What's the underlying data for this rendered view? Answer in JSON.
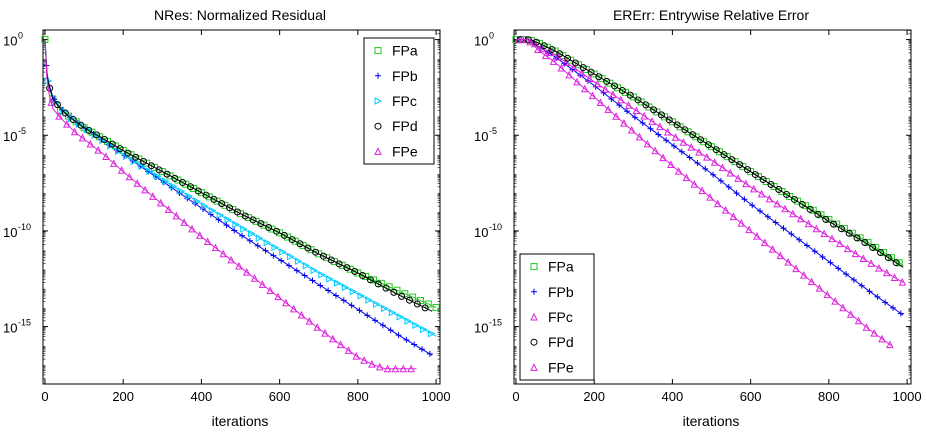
{
  "chart_data": [
    {
      "type": "line",
      "title": "NRes: Normalized Residual",
      "xlabel": "iterations",
      "ylabel": "",
      "xlim": [
        -5,
        1010
      ],
      "ylim_log10": [
        -18,
        0.5
      ],
      "y_scale": "log",
      "x_ticks": [
        "0",
        "200",
        "400",
        "600",
        "800",
        "1000"
      ],
      "y_ticks": [
        {
          "base": "10",
          "exp": "0"
        },
        {
          "base": "10",
          "exp": "-5"
        },
        {
          "base": "10",
          "exp": "-10"
        },
        {
          "base": "10",
          "exp": "-15"
        }
      ],
      "legend_position": "top-right",
      "grid": false,
      "series": [
        {
          "name": "FPa",
          "color": "#22cc22",
          "marker": "square",
          "x": [
            0,
            5,
            10,
            20,
            40,
            60,
            80,
            100,
            150,
            200,
            300,
            400,
            500,
            600,
            700,
            800,
            900,
            1000
          ],
          "log10_y": [
            0,
            -1.8,
            -2.4,
            -3.1,
            -3.7,
            -4.0,
            -4.3,
            -4.6,
            -5.2,
            -5.8,
            -6.9,
            -8.0,
            -9.1,
            -10.1,
            -11.2,
            -12.2,
            -13.1,
            -14.0
          ]
        },
        {
          "name": "FPb",
          "color": "#0000ee",
          "marker": "plus",
          "x": [
            0,
            5,
            10,
            20,
            40,
            60,
            80,
            100,
            150,
            200,
            300,
            400,
            500,
            600,
            700,
            800,
            900,
            990
          ],
          "log10_y": [
            0,
            -1.7,
            -2.3,
            -3.0,
            -3.6,
            -4.0,
            -4.3,
            -4.6,
            -5.3,
            -6.0,
            -7.4,
            -8.8,
            -10.2,
            -11.5,
            -12.8,
            -14.1,
            -15.4,
            -16.5
          ]
        },
        {
          "name": "FPc",
          "color": "#00ccff",
          "marker": "triangle-right",
          "x": [
            0,
            5,
            10,
            20,
            40,
            60,
            80,
            100,
            150,
            200,
            300,
            400,
            500,
            600,
            700,
            800,
            900,
            1000
          ],
          "log10_y": [
            0,
            -1.8,
            -2.4,
            -3.1,
            -3.6,
            -4.0,
            -4.3,
            -4.6,
            -5.3,
            -6.0,
            -7.3,
            -8.6,
            -9.8,
            -11.0,
            -12.2,
            -13.3,
            -14.4,
            -15.5
          ]
        },
        {
          "name": "FPd",
          "color": "#000000",
          "marker": "circle",
          "x": [
            0,
            5,
            10,
            20,
            40,
            60,
            80,
            100,
            150,
            200,
            300,
            400,
            500,
            600,
            700,
            800,
            900,
            990
          ],
          "log10_y": [
            0,
            -1.8,
            -2.4,
            -3.1,
            -3.6,
            -4.0,
            -4.3,
            -4.6,
            -5.2,
            -5.8,
            -6.9,
            -8.0,
            -9.1,
            -10.1,
            -11.2,
            -12.2,
            -13.3,
            -14.2
          ]
        },
        {
          "name": "FPe",
          "color": "#dd22dd",
          "marker": "triangle-up",
          "x": [
            0,
            5,
            10,
            20,
            40,
            60,
            80,
            100,
            150,
            200,
            300,
            400,
            500,
            600,
            700,
            800,
            840,
            870,
            900,
            950
          ],
          "log10_y": [
            0,
            -2.0,
            -2.8,
            -3.6,
            -4.1,
            -4.5,
            -4.9,
            -5.2,
            -6.0,
            -6.9,
            -8.6,
            -10.3,
            -11.9,
            -13.5,
            -15.1,
            -16.6,
            -17.0,
            -17.2,
            -17.2,
            -17.2
          ]
        }
      ]
    },
    {
      "type": "line",
      "title": "ERErr: Entrywise Relative Error",
      "xlabel": "iterations",
      "ylabel": "",
      "xlim": [
        -5,
        1010
      ],
      "ylim_log10": [
        -18,
        0.5
      ],
      "y_scale": "log",
      "x_ticks": [
        "0",
        "200",
        "400",
        "600",
        "800",
        "1000"
      ],
      "y_ticks": [
        {
          "base": "10",
          "exp": "0"
        },
        {
          "base": "10",
          "exp": "-5"
        },
        {
          "base": "10",
          "exp": "-10"
        },
        {
          "base": "10",
          "exp": "-15"
        }
      ],
      "legend_position": "bottom-left",
      "grid": false,
      "series": [
        {
          "name": "FPa",
          "color": "#22cc22",
          "marker": "square",
          "x": [
            0,
            30,
            40,
            60,
            100,
            200,
            300,
            400,
            500,
            600,
            700,
            800,
            900,
            990
          ],
          "log10_y": [
            0,
            0,
            -0.05,
            -0.2,
            -0.6,
            -1.8,
            -3.0,
            -4.3,
            -5.6,
            -6.9,
            -8.2,
            -9.4,
            -10.6,
            -11.8
          ]
        },
        {
          "name": "FPb",
          "color": "#0000ee",
          "marker": "plus",
          "x": [
            0,
            30,
            40,
            60,
            100,
            200,
            300,
            400,
            500,
            600,
            700,
            800,
            900,
            990
          ],
          "log10_y": [
            0,
            0,
            -0.1,
            -0.4,
            -0.9,
            -2.4,
            -4.0,
            -5.5,
            -7.0,
            -8.6,
            -10.1,
            -11.6,
            -13.1,
            -14.4
          ]
        },
        {
          "name": "FPc",
          "color": "#dd22dd",
          "marker": "triangle-up",
          "x": [
            0,
            30,
            40,
            60,
            100,
            200,
            300,
            400,
            500,
            600,
            700,
            800,
            900,
            990
          ],
          "log10_y": [
            0,
            0,
            -0.1,
            -0.4,
            -0.8,
            -2.2,
            -3.6,
            -5.0,
            -6.3,
            -7.7,
            -9.0,
            -10.3,
            -11.6,
            -12.7
          ]
        },
        {
          "name": "FPd",
          "color": "#000000",
          "marker": "circle",
          "x": [
            0,
            30,
            40,
            60,
            100,
            200,
            300,
            400,
            500,
            600,
            700,
            800,
            900,
            990
          ],
          "log10_y": [
            0,
            0,
            -0.05,
            -0.2,
            -0.6,
            -1.8,
            -3.0,
            -4.3,
            -5.6,
            -6.9,
            -8.2,
            -9.5,
            -10.7,
            -11.9
          ]
        },
        {
          "name": "FPe",
          "color": "#dd22dd",
          "marker": "triangle-up",
          "x": [
            0,
            30,
            40,
            60,
            100,
            200,
            300,
            400,
            500,
            600,
            700,
            800,
            900,
            960
          ],
          "log10_y": [
            0,
            0,
            -0.2,
            -0.6,
            -1.2,
            -3.0,
            -4.8,
            -6.6,
            -8.3,
            -10.0,
            -11.7,
            -13.4,
            -15.1,
            -16.0
          ]
        }
      ]
    }
  ]
}
